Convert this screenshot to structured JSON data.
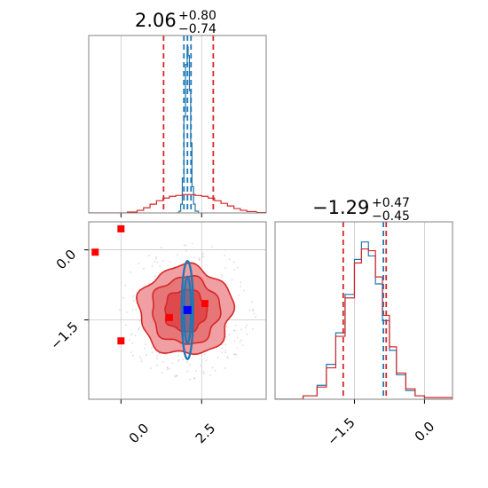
{
  "colors": {
    "blue": "#1f77b4",
    "red": "#d62728",
    "point_red": "#ff0000",
    "point_blue": "#0000ff",
    "fill_light": "#f0a0a2",
    "fill_mid": "#e77678",
    "fill_dark": "#de4a4c",
    "grid": "#c8c8c8",
    "frame": "#808080"
  },
  "chart_data": [
    {
      "panel": "top-left",
      "type": "area",
      "title_main": "2.06",
      "title_sup": "+0.80",
      "title_sub": "−0.74",
      "xlim": [
        -1.0,
        4.5
      ],
      "ylim": [
        0,
        1.0
      ],
      "xticks": [
        0.0,
        2.5
      ],
      "grid": true,
      "series": [
        {
          "color": "blue",
          "x": [
            1.7,
            1.8,
            1.85,
            1.9,
            1.95,
            2.0,
            2.05,
            2.08,
            2.12,
            2.16,
            2.2,
            2.25,
            2.3,
            2.4
          ],
          "values": [
            0.0,
            0.01,
            0.05,
            0.2,
            0.55,
            0.85,
            0.95,
            0.9,
            0.7,
            0.4,
            0.15,
            0.05,
            0.01,
            0.0
          ]
        },
        {
          "color": "red",
          "x": [
            -1.0,
            -0.2,
            0.2,
            0.5,
            0.7,
            0.9,
            1.1,
            1.3,
            1.5,
            1.7,
            1.9,
            2.1,
            2.3,
            2.5,
            2.7,
            2.9,
            3.1,
            3.3,
            3.5,
            3.7,
            3.9,
            4.2,
            4.5
          ],
          "values": [
            0.0,
            0.0,
            0.005,
            0.015,
            0.03,
            0.05,
            0.07,
            0.085,
            0.095,
            0.1,
            0.105,
            0.105,
            0.1,
            0.095,
            0.085,
            0.07,
            0.055,
            0.04,
            0.025,
            0.015,
            0.008,
            0.002,
            0.0
          ]
        }
      ],
      "vlines": [
        {
          "color": "blue",
          "x": 1.95
        },
        {
          "color": "blue",
          "x": 2.06
        },
        {
          "color": "blue",
          "x": 2.17
        },
        {
          "color": "red",
          "x": 1.32
        },
        {
          "color": "red",
          "x": 2.86
        }
      ]
    },
    {
      "panel": "bottom-left",
      "type": "scatter",
      "xlim": [
        -1.0,
        4.5
      ],
      "ylim": [
        -3.2,
        0.6
      ],
      "xticks": [
        0.0,
        2.5
      ],
      "yticks": [
        0.0,
        -1.5
      ],
      "xtick_labels": [
        "0.0",
        "2.5"
      ],
      "ytick_labels": [
        "0.0",
        "−1.5"
      ],
      "grid": true,
      "red_points": [
        {
          "x": -0.8,
          "y": -0.05
        },
        {
          "x": 0.0,
          "y": 0.45
        },
        {
          "x": 0.0,
          "y": -1.95
        },
        {
          "x": 1.5,
          "y": -1.45
        },
        {
          "x": 2.6,
          "y": -1.15
        }
      ],
      "blue_point": {
        "x": 2.06,
        "y": -1.29
      },
      "red_contours": {
        "center": {
          "x": 2.0,
          "y": -1.3
        },
        "levels": [
          {
            "rx": 1.45,
            "ry": 0.95,
            "fill": "fill_light"
          },
          {
            "rx": 1.05,
            "ry": 0.72,
            "fill": "fill_mid"
          },
          {
            "rx": 0.65,
            "ry": 0.45,
            "fill": "fill_dark"
          }
        ]
      },
      "blue_contours": {
        "center": {
          "x": 2.06,
          "y": -1.29
        },
        "levels": [
          {
            "rx": 0.18,
            "ry": 1.05
          },
          {
            "rx": 0.11,
            "ry": 0.72
          }
        ]
      }
    },
    {
      "panel": "bottom-right",
      "type": "area",
      "title_main": "−1.29",
      "title_sup": "+0.47",
      "title_sub": "−0.45",
      "xlim": [
        -3.2,
        0.6
      ],
      "ylim": [
        0,
        1.0
      ],
      "xticks": [
        -1.5,
        0.0
      ],
      "xtick_labels": [
        "−1.5",
        "0.0"
      ],
      "grid": true,
      "series": [
        {
          "color": "blue",
          "x": [
            -3.2,
            -2.6,
            -2.3,
            -2.1,
            -1.9,
            -1.7,
            -1.5,
            -1.35,
            -1.2,
            -1.05,
            -0.9,
            -0.75,
            -0.6,
            -0.4,
            -0.2,
            0.0,
            0.6
          ],
          "values": [
            0.0,
            0.02,
            0.08,
            0.2,
            0.38,
            0.6,
            0.8,
            0.9,
            0.82,
            0.66,
            0.45,
            0.28,
            0.14,
            0.05,
            0.02,
            0.0,
            0.0
          ]
        },
        {
          "color": "red",
          "x": [
            -3.2,
            -2.6,
            -2.3,
            -2.1,
            -1.9,
            -1.7,
            -1.5,
            -1.35,
            -1.2,
            -1.05,
            -0.9,
            -0.75,
            -0.6,
            -0.4,
            -0.2,
            0.0,
            0.6
          ],
          "values": [
            0.0,
            0.02,
            0.07,
            0.18,
            0.36,
            0.58,
            0.78,
            0.86,
            0.85,
            0.7,
            0.48,
            0.3,
            0.15,
            0.06,
            0.02,
            0.01,
            0.0
          ]
        }
      ],
      "vlines": [
        {
          "color": "red",
          "x": -1.74
        },
        {
          "color": "red",
          "x": -0.82
        },
        {
          "color": "blue",
          "x": -0.88
        }
      ]
    }
  ]
}
